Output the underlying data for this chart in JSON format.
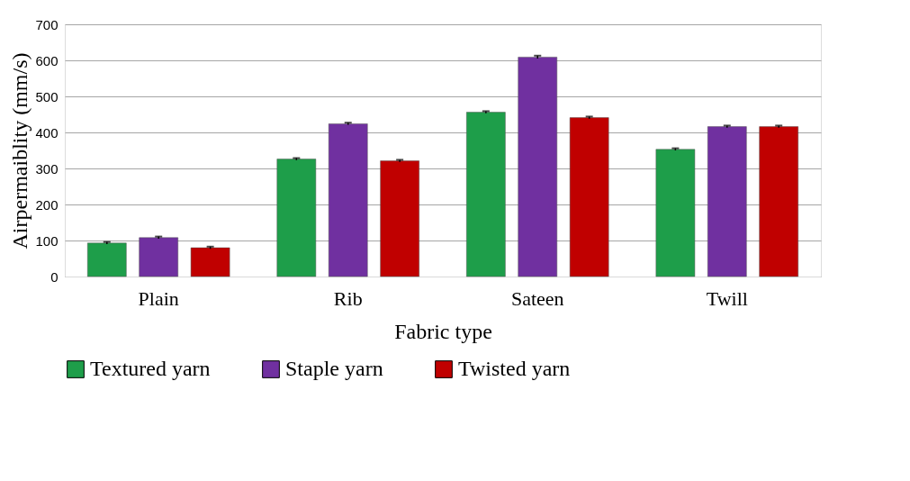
{
  "chart_data": {
    "type": "bar",
    "xlabel": "Fabric type",
    "ylabel": "Airpermaiblity (mm/s)",
    "categories": [
      "Plain",
      "Rib",
      "Sateen",
      "Twill"
    ],
    "series": [
      {
        "name": "Textured yarn",
        "color": "#1e9e4a",
        "values": [
          93,
          326,
          456,
          353
        ],
        "errors": [
          3,
          3,
          3,
          3
        ]
      },
      {
        "name": "Staple yarn",
        "color": "#7030a0",
        "values": [
          108,
          424,
          609,
          416
        ],
        "errors": [
          3,
          3,
          4,
          3
        ]
      },
      {
        "name": "Twisted yarn",
        "color": "#c00000",
        "values": [
          80,
          321,
          441,
          416
        ],
        "errors": [
          3,
          3,
          3,
          3
        ]
      }
    ],
    "ylim": [
      0,
      700
    ],
    "yticks": [
      0,
      100,
      200,
      300,
      400,
      500,
      600,
      700
    ],
    "grid": "y",
    "legend": "bottom"
  }
}
